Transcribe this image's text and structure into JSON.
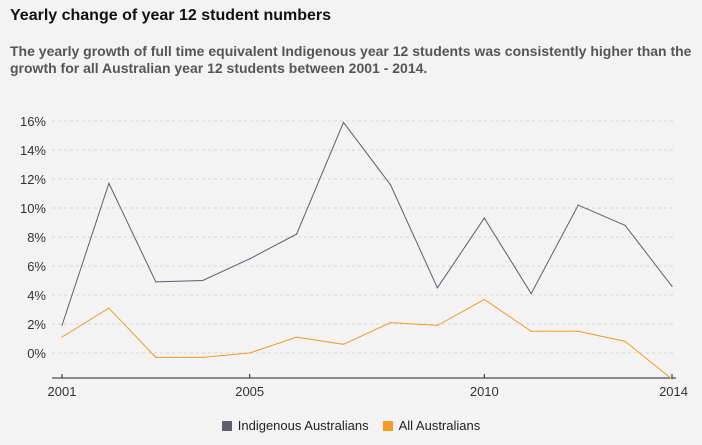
{
  "header": {
    "title": "Yearly change of year 12 student numbers",
    "subtitle": "The yearly growth of full time equivalent Indigenous year 12 students was consistently higher than the growth for all Australian year 12 students between 2001 - 2014."
  },
  "colors": {
    "indigenous": "#5d5f6d",
    "all": "#f39a2b",
    "grid": "#d4d4d4",
    "axis": "#222222"
  },
  "chart_data": {
    "type": "line",
    "x": [
      2001,
      2002,
      2003,
      2004,
      2005,
      2006,
      2007,
      2008,
      2009,
      2010,
      2011,
      2012,
      2013,
      2014
    ],
    "series": [
      {
        "name": "Indigenous Australians",
        "values": [
          1.9,
          11.7,
          4.9,
          5.0,
          6.5,
          8.2,
          15.9,
          11.6,
          4.5,
          9.3,
          4.1,
          10.2,
          8.8,
          4.6
        ]
      },
      {
        "name": "All Australians",
        "values": [
          1.1,
          3.1,
          -0.3,
          -0.3,
          0.0,
          1.1,
          0.6,
          2.1,
          1.9,
          3.7,
          1.5,
          1.5,
          0.8,
          -1.8
        ]
      }
    ],
    "x_ticks": [
      2001,
      2005,
      2010,
      2014
    ],
    "y_ticks": [
      "0%",
      "2%",
      "4%",
      "6%",
      "8%",
      "10%",
      "12%",
      "14%",
      "16%"
    ],
    "xlim": [
      2001,
      2014
    ],
    "ylim": [
      -1.8,
      16
    ],
    "grid": true,
    "legend_position": "bottom"
  }
}
